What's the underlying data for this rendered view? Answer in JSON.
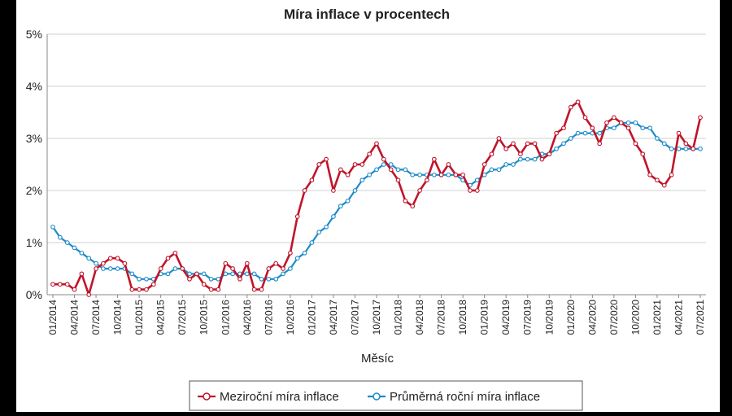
{
  "chart_data": {
    "type": "line",
    "title": "Míra inflace v procentech",
    "xlabel": "Měsíc",
    "ylabel": "",
    "ylim": [
      0,
      5
    ],
    "y_ticks": [
      "0%",
      "1%",
      "2%",
      "3%",
      "4%",
      "5%"
    ],
    "x_tick_labels": [
      "01/2014",
      "04/2014",
      "07/2014",
      "10/2014",
      "01/2015",
      "04/2015",
      "07/2015",
      "10/2015",
      "01/2016",
      "04/2016",
      "07/2016",
      "10/2016",
      "01/2017",
      "04/2017",
      "07/2017",
      "10/2017",
      "01/2018",
      "04/2018",
      "07/2018",
      "10/2018",
      "01/2019",
      "04/2019",
      "07/2019",
      "10/2019",
      "01/2020",
      "04/2020",
      "07/2020",
      "10/2020",
      "01/2021",
      "04/2021",
      "07/2021"
    ],
    "x_start": "01/2014",
    "x_end": "07/2021",
    "grid": "horizontal",
    "legend_position": "bottom",
    "series": [
      {
        "name": "Meziroční míra inflace",
        "color": "#c0142a",
        "values": [
          0.2,
          0.2,
          0.2,
          0.1,
          0.4,
          0.0,
          0.5,
          0.6,
          0.7,
          0.7,
          0.6,
          0.1,
          0.1,
          0.1,
          0.2,
          0.5,
          0.7,
          0.8,
          0.5,
          0.3,
          0.4,
          0.2,
          0.1,
          0.1,
          0.6,
          0.5,
          0.3,
          0.6,
          0.1,
          0.1,
          0.5,
          0.6,
          0.5,
          0.8,
          1.5,
          2.0,
          2.2,
          2.5,
          2.6,
          2.0,
          2.4,
          2.3,
          2.5,
          2.5,
          2.7,
          2.9,
          2.6,
          2.4,
          2.2,
          1.8,
          1.7,
          2.0,
          2.2,
          2.6,
          2.3,
          2.5,
          2.3,
          2.3,
          2.0,
          2.0,
          2.5,
          2.7,
          3.0,
          2.8,
          2.9,
          2.7,
          2.9,
          2.9,
          2.6,
          2.7,
          3.1,
          3.2,
          3.6,
          3.7,
          3.4,
          3.2,
          2.9,
          3.3,
          3.4,
          3.3,
          3.2,
          2.9,
          2.7,
          2.3,
          2.2,
          2.1,
          2.3,
          3.1,
          2.9,
          2.8,
          3.4
        ]
      },
      {
        "name": "Průměrná roční míra inflace",
        "color": "#1e8bc8",
        "values": [
          1.3,
          1.1,
          1.0,
          0.9,
          0.8,
          0.7,
          0.6,
          0.5,
          0.5,
          0.5,
          0.5,
          0.4,
          0.3,
          0.3,
          0.3,
          0.4,
          0.4,
          0.5,
          0.5,
          0.4,
          0.4,
          0.4,
          0.3,
          0.3,
          0.4,
          0.4,
          0.4,
          0.4,
          0.4,
          0.3,
          0.3,
          0.3,
          0.4,
          0.5,
          0.7,
          0.8,
          1.0,
          1.2,
          1.3,
          1.5,
          1.7,
          1.8,
          2.0,
          2.2,
          2.3,
          2.4,
          2.5,
          2.5,
          2.4,
          2.4,
          2.3,
          2.3,
          2.3,
          2.3,
          2.3,
          2.3,
          2.3,
          2.2,
          2.1,
          2.2,
          2.3,
          2.4,
          2.4,
          2.5,
          2.5,
          2.6,
          2.6,
          2.6,
          2.7,
          2.7,
          2.8,
          2.9,
          3.0,
          3.1,
          3.1,
          3.1,
          3.1,
          3.2,
          3.2,
          3.3,
          3.3,
          3.3,
          3.2,
          3.2,
          3.0,
          2.9,
          2.8,
          2.8,
          2.8,
          2.8,
          2.8
        ]
      }
    ]
  }
}
